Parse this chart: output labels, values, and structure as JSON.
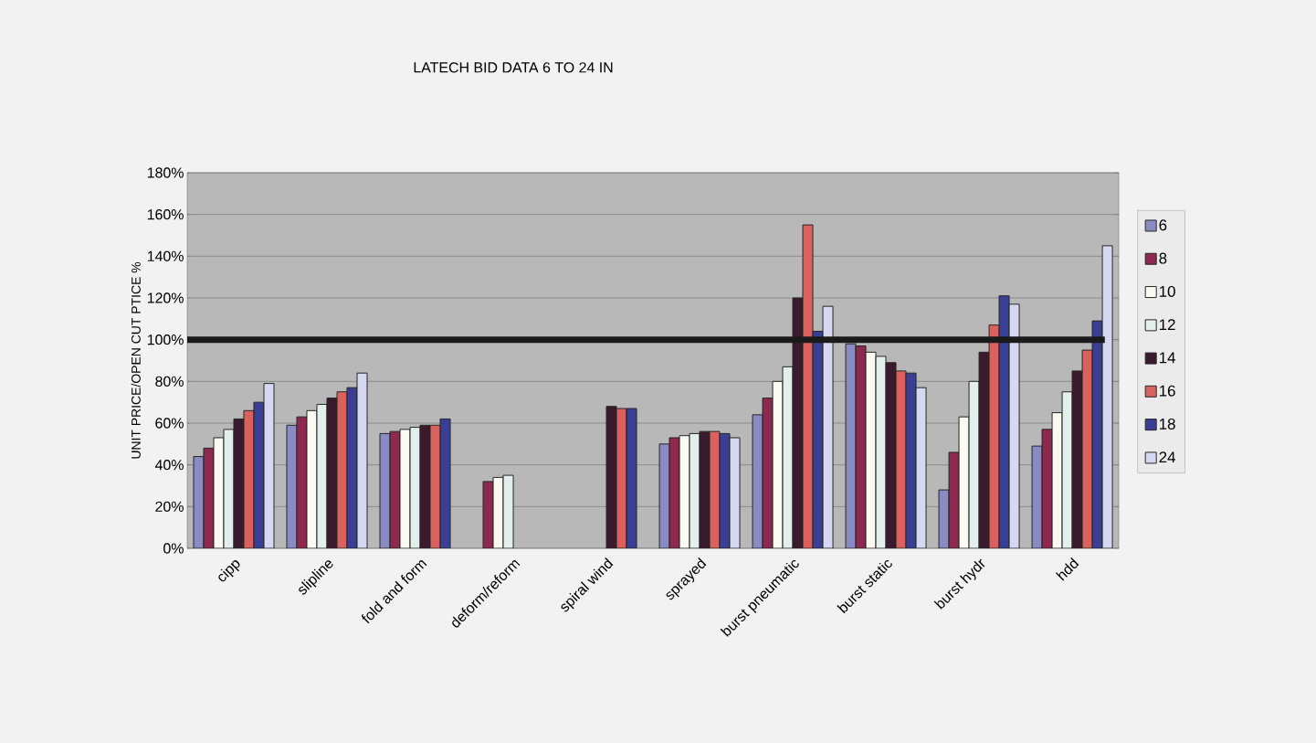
{
  "chart_data": {
    "type": "bar",
    "title": "LATECH BID DATA 6 TO 24 IN",
    "ylabel": "UNIT PRICE/OPEN CUT PTICE %",
    "categories": [
      "cipp",
      "slipline",
      "fold and form",
      "deform/reform",
      "spiral wind",
      "sprayed",
      "burst pneumatic",
      "burst static",
      "burst hydr",
      "hdd"
    ],
    "series": [
      {
        "name": "6",
        "color": "#8a8ac4",
        "values": [
          44,
          59,
          55,
          null,
          null,
          50,
          64,
          98,
          28,
          49
        ]
      },
      {
        "name": "8",
        "color": "#8b2a4e",
        "values": [
          48,
          63,
          56,
          32,
          null,
          53,
          72,
          97,
          46,
          57
        ]
      },
      {
        "name": "10",
        "color": "#fafaf0",
        "values": [
          53,
          66,
          57,
          34,
          null,
          54,
          80,
          94,
          63,
          65
        ]
      },
      {
        "name": "12",
        "color": "#e2efec",
        "values": [
          57,
          69,
          58,
          35,
          null,
          55,
          87,
          92,
          80,
          75
        ]
      },
      {
        "name": "14",
        "color": "#3a1a2c",
        "values": [
          62,
          72,
          59,
          null,
          68,
          56,
          120,
          89,
          94,
          85
        ]
      },
      {
        "name": "16",
        "color": "#d9625e",
        "values": [
          66,
          75,
          59,
          null,
          67,
          56,
          155,
          85,
          107,
          95
        ]
      },
      {
        "name": "18",
        "color": "#3a3f96",
        "values": [
          70,
          77,
          62,
          null,
          67,
          55,
          104,
          84,
          121,
          109
        ]
      },
      {
        "name": "24",
        "color": "#d6d8f2",
        "values": [
          79,
          84,
          null,
          null,
          null,
          53,
          116,
          77,
          117,
          145
        ]
      }
    ],
    "ylim": [
      0,
      180
    ],
    "yticks": [
      {
        "value": 0,
        "label": "0%"
      },
      {
        "value": 20,
        "label": "20%"
      },
      {
        "value": 40,
        "label": "40%"
      },
      {
        "value": 60,
        "label": "60%"
      },
      {
        "value": 80,
        "label": "80%"
      },
      {
        "value": 100,
        "label": "100%"
      },
      {
        "value": 120,
        "label": "120%"
      },
      {
        "value": 140,
        "label": "140%"
      },
      {
        "value": 160,
        "label": "160%"
      },
      {
        "value": 180,
        "label": "180%"
      }
    ],
    "ref_lines": [
      {
        "axis": "y",
        "value": 100,
        "color": "#1a1a1a"
      }
    ],
    "grid": "y",
    "legend": "right"
  }
}
